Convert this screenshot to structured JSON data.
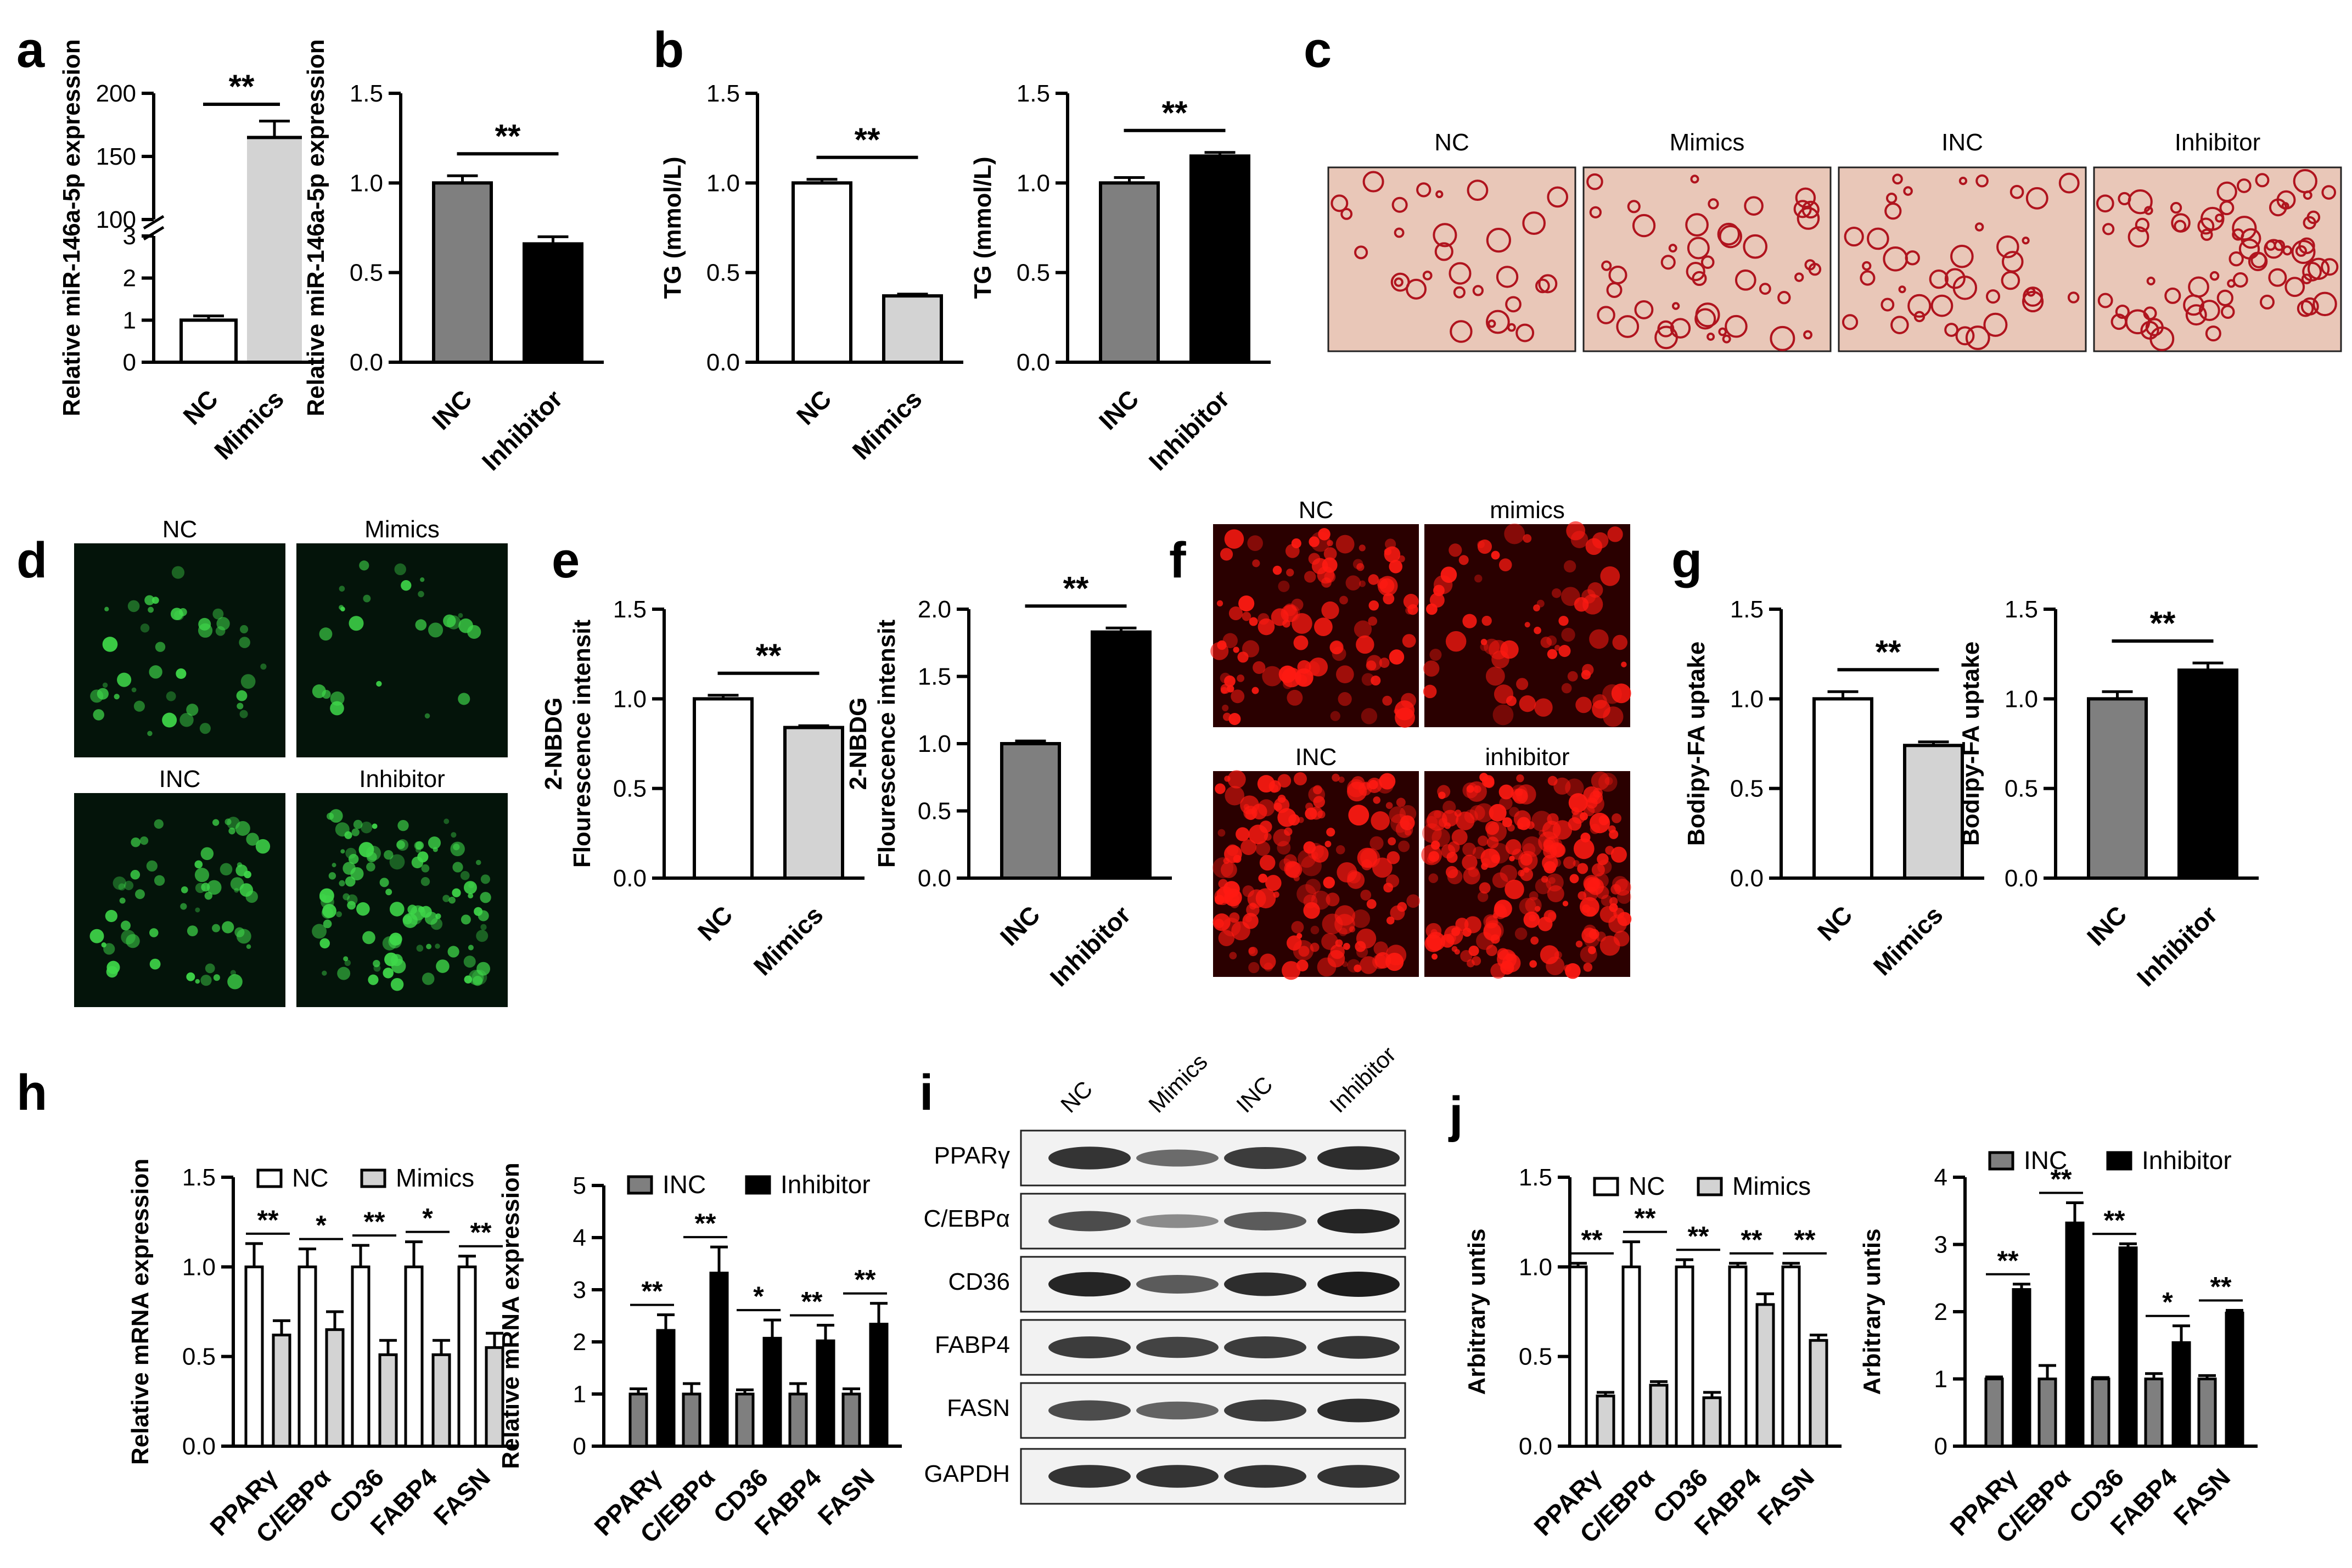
{
  "panel_labels": {
    "a": "a",
    "b": "b",
    "c": "c",
    "d": "d",
    "e": "e",
    "f": "f",
    "g": "g",
    "h": "h",
    "i": "i",
    "j": "j"
  },
  "sig": {
    "double": "**",
    "single": "*"
  },
  "colors": {
    "white": "#ffffff",
    "light": "#d3d3d3",
    "dark_gray": "#7f7f7f",
    "black": "#000000",
    "oil_red_bg": "#e9c7b8",
    "green_bg": "#04140a",
    "red_bg": "#2a0000"
  },
  "chart_data": [
    {
      "id": "a1",
      "type": "bar",
      "ylabel": "Relative miR-146a-5p expression",
      "categories": [
        "NC",
        "Mimics"
      ],
      "values": [
        1.0,
        165
      ],
      "errors": [
        0.1,
        13
      ],
      "colors": [
        "#ffffff",
        "#d3d3d3"
      ],
      "broken_axis": true,
      "ylim_low": [
        0,
        3
      ],
      "ylim_high": [
        100,
        200
      ],
      "ticks_low": [
        "0",
        "1",
        "2",
        "3"
      ],
      "ticks_high": [
        "100",
        "150",
        "200"
      ],
      "sig": [
        {
          "a": 0,
          "b": 1,
          "label": "**"
        }
      ]
    },
    {
      "id": "a2",
      "type": "bar",
      "ylabel": "Relative miR-146a-5p expression",
      "categories": [
        "INC",
        "Inhibitor"
      ],
      "values": [
        1.0,
        0.66
      ],
      "errors": [
        0.04,
        0.04
      ],
      "colors": [
        "#7f7f7f",
        "#000000"
      ],
      "ylim": [
        0,
        1.5
      ],
      "ticks": [
        "0.0",
        "0.5",
        "1.0",
        "1.5"
      ],
      "sig": [
        {
          "a": 0,
          "b": 1,
          "label": "**"
        }
      ]
    },
    {
      "id": "b1",
      "type": "bar",
      "ylabel": "TG (mmol/L)",
      "categories": [
        "NC",
        "Mimics"
      ],
      "values": [
        1.0,
        0.37
      ],
      "errors": [
        0.02,
        0.01
      ],
      "colors": [
        "#ffffff",
        "#d3d3d3"
      ],
      "ylim": [
        0,
        1.5
      ],
      "ticks": [
        "0.0",
        "0.5",
        "1.0",
        "1.5"
      ],
      "sig": [
        {
          "a": 0,
          "b": 1,
          "label": "**"
        }
      ]
    },
    {
      "id": "b2",
      "type": "bar",
      "ylabel": "TG (mmol/L)",
      "categories": [
        "INC",
        "Inhibitor"
      ],
      "values": [
        1.0,
        1.15
      ],
      "errors": [
        0.03,
        0.02
      ],
      "colors": [
        "#7f7f7f",
        "#000000"
      ],
      "ylim": [
        0,
        1.5
      ],
      "ticks": [
        "0.0",
        "0.5",
        "1.0",
        "1.5"
      ],
      "sig": [
        {
          "a": 0,
          "b": 1,
          "label": "**"
        }
      ]
    },
    {
      "id": "e1",
      "type": "bar",
      "ylabel": "2-NBDG Flourescence intensit",
      "ylabel_lines": [
        "2-NBDG",
        "Flourescence intensit"
      ],
      "categories": [
        "NC",
        "Mimics"
      ],
      "values": [
        1.0,
        0.84
      ],
      "errors": [
        0.02,
        0.01
      ],
      "colors": [
        "#ffffff",
        "#d3d3d3"
      ],
      "ylim": [
        0,
        1.5
      ],
      "ticks": [
        "0.0",
        "0.5",
        "1.0",
        "1.5"
      ],
      "sig": [
        {
          "a": 0,
          "b": 1,
          "label": "**"
        }
      ]
    },
    {
      "id": "e2",
      "type": "bar",
      "ylabel": "2-NBDG Flourescence intensit",
      "ylabel_lines": [
        "2-NBDG",
        "Flourescence intensit"
      ],
      "categories": [
        "INC",
        "Inhibitor"
      ],
      "values": [
        1.0,
        1.83
      ],
      "errors": [
        0.02,
        0.03
      ],
      "colors": [
        "#7f7f7f",
        "#000000"
      ],
      "ylim": [
        0,
        2.0
      ],
      "ticks": [
        "0.0",
        "0.5",
        "1.0",
        "1.5",
        "2.0"
      ],
      "sig": [
        {
          "a": 0,
          "b": 1,
          "label": "**"
        }
      ]
    },
    {
      "id": "g1",
      "type": "bar",
      "ylabel": "Bodipy-FA uptake",
      "categories": [
        "NC",
        "Mimics"
      ],
      "values": [
        1.0,
        0.74
      ],
      "errors": [
        0.04,
        0.02
      ],
      "colors": [
        "#ffffff",
        "#d3d3d3"
      ],
      "ylim": [
        0,
        1.5
      ],
      "ticks": [
        "0.0",
        "0.5",
        "1.0",
        "1.5"
      ],
      "sig": [
        {
          "a": 0,
          "b": 1,
          "label": "**"
        }
      ]
    },
    {
      "id": "g2",
      "type": "bar",
      "ylabel": "Bodipy-FA uptake",
      "categories": [
        "INC",
        "Inhibitor"
      ],
      "values": [
        1.0,
        1.16
      ],
      "errors": [
        0.04,
        0.04
      ],
      "colors": [
        "#7f7f7f",
        "#000000"
      ],
      "ylim": [
        0,
        1.5
      ],
      "ticks": [
        "0.0",
        "0.5",
        "1.0",
        "1.5"
      ],
      "sig": [
        {
          "a": 0,
          "b": 1,
          "label": "**"
        }
      ]
    },
    {
      "id": "h1",
      "type": "bar",
      "ylabel": "Relative mRNA expression",
      "categories": [
        "PPARγ",
        "C/EBPα",
        "CD36",
        "FABP4",
        "FASN"
      ],
      "series": [
        {
          "name": "NC",
          "values": [
            1.0,
            1.0,
            1.0,
            1.0,
            1.0
          ],
          "errors": [
            0.13,
            0.1,
            0.12,
            0.14,
            0.06
          ],
          "color": "#ffffff"
        },
        {
          "name": "Mimics",
          "values": [
            0.62,
            0.65,
            0.51,
            0.51,
            0.55
          ],
          "errors": [
            0.08,
            0.1,
            0.08,
            0.08,
            0.08
          ],
          "color": "#d3d3d3"
        }
      ],
      "ylim": [
        0,
        1.5
      ],
      "ticks": [
        "0.0",
        "0.5",
        "1.0",
        "1.5"
      ],
      "sig": [
        "**",
        "*",
        "**",
        "*",
        "**"
      ],
      "legend": "top"
    },
    {
      "id": "h2",
      "type": "bar",
      "ylabel": "Relative mRNA expression",
      "categories": [
        "PPARγ",
        "C/EBPα",
        "CD36",
        "FABP4",
        "FASN"
      ],
      "series": [
        {
          "name": "INC",
          "values": [
            1.0,
            1.0,
            1.0,
            1.0,
            1.0
          ],
          "errors": [
            0.1,
            0.2,
            0.08,
            0.2,
            0.1
          ],
          "color": "#7f7f7f"
        },
        {
          "name": "Inhibitor",
          "values": [
            2.22,
            3.32,
            2.07,
            2.02,
            2.34
          ],
          "errors": [
            0.3,
            0.5,
            0.35,
            0.3,
            0.4
          ],
          "color": "#000000"
        }
      ],
      "ylim": [
        0,
        5
      ],
      "ticks": [
        "0",
        "1",
        "2",
        "3",
        "4",
        "5"
      ],
      "sig": [
        "**",
        "**",
        "*",
        "**",
        "**"
      ],
      "legend": "top"
    },
    {
      "id": "j1",
      "type": "bar",
      "ylabel": "Arbitrary untis",
      "categories": [
        "PPARγ",
        "C/EBPα",
        "CD36",
        "FABP4",
        "FASN"
      ],
      "series": [
        {
          "name": "NC",
          "values": [
            1.0,
            1.0,
            1.0,
            1.0,
            1.0
          ],
          "errors": [
            0.02,
            0.14,
            0.04,
            0.02,
            0.02
          ],
          "color": "#ffffff"
        },
        {
          "name": "Mimics",
          "values": [
            0.28,
            0.34,
            0.27,
            0.79,
            0.59
          ],
          "errors": [
            0.02,
            0.02,
            0.03,
            0.06,
            0.03
          ],
          "color": "#d3d3d3"
        }
      ],
      "ylim": [
        0,
        1.5
      ],
      "ticks": [
        "0.0",
        "0.5",
        "1.0",
        "1.5"
      ],
      "sig": [
        "**",
        "**",
        "**",
        "**",
        "**"
      ],
      "legend": "top"
    },
    {
      "id": "j2",
      "type": "bar",
      "ylabel": "Arbitrary untis",
      "categories": [
        "PPARγ",
        "C/EBPα",
        "CD36",
        "FABP4",
        "FASN"
      ],
      "series": [
        {
          "name": "INC",
          "values": [
            1.0,
            1.0,
            1.0,
            1.0,
            1.0
          ],
          "errors": [
            0.03,
            0.2,
            0.02,
            0.08,
            0.05
          ],
          "color": "#7f7f7f"
        },
        {
          "name": "Inhibitor",
          "values": [
            2.33,
            3.32,
            2.95,
            1.54,
            1.98
          ],
          "errors": [
            0.08,
            0.3,
            0.06,
            0.25,
            0.04
          ],
          "color": "#000000"
        }
      ],
      "ylim": [
        0,
        4
      ],
      "ticks": [
        "0",
        "1",
        "2",
        "3",
        "4"
      ],
      "sig": [
        "**",
        "**",
        "**",
        "*",
        "**"
      ],
      "legend": "top"
    }
  ],
  "oil_red_titles": [
    "NC",
    "Mimics",
    "INC",
    "Inhibitor"
  ],
  "nbdg_titles": [
    "NC",
    "Mimics",
    "INC",
    "Inhibitor"
  ],
  "bodipy_titles": [
    "NC",
    "mimics",
    "INC",
    "inhibitor"
  ],
  "western": {
    "lanes": [
      "NC",
      "Mimics",
      "INC",
      "Inhibitor"
    ],
    "proteins": [
      "PPARγ",
      "C/EBPα",
      "CD36",
      "FABP4",
      "FASN",
      "GAPDH"
    ]
  }
}
